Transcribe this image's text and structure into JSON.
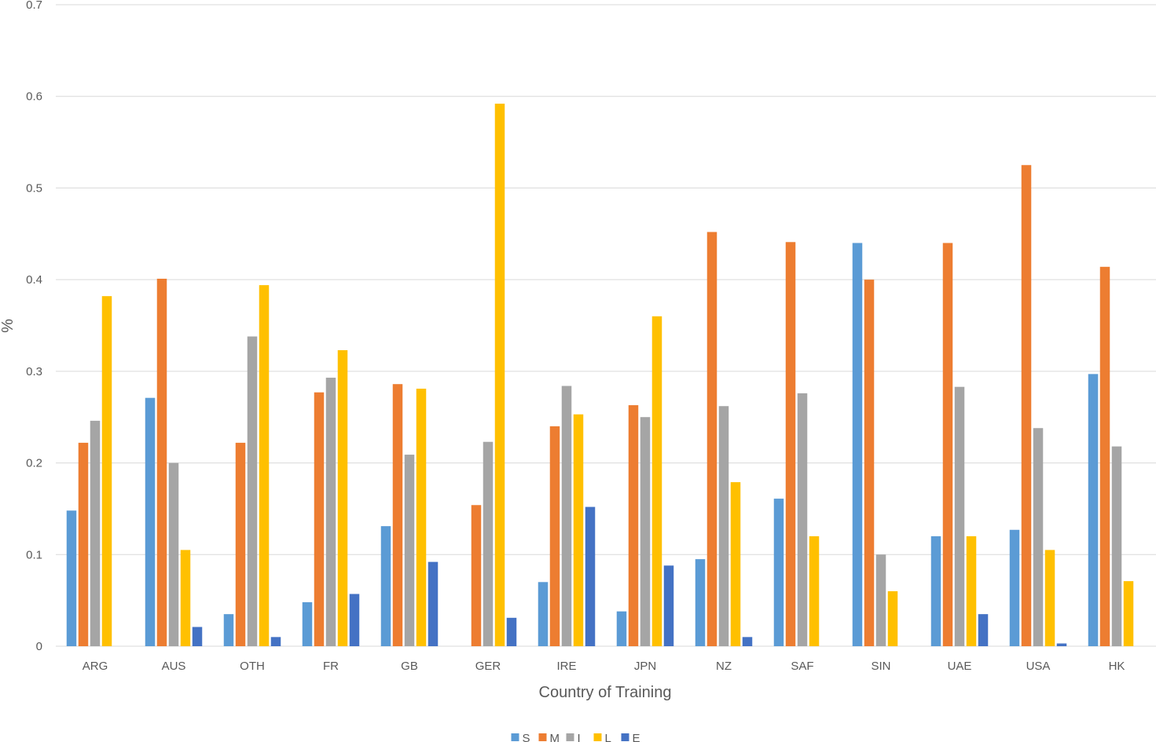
{
  "chart_data": {
    "type": "bar",
    "title": "",
    "xlabel": "Country of Training",
    "ylabel": "%",
    "ylim": [
      0,
      0.7
    ],
    "yticks": [
      0,
      0.1,
      0.2,
      0.3,
      0.4,
      0.5,
      0.6,
      0.7
    ],
    "grid": true,
    "legend_position": "bottom",
    "categories": [
      "ARG",
      "AUS",
      "OTH",
      "FR",
      "GB",
      "GER",
      "IRE",
      "JPN",
      "NZ",
      "SAF",
      "SIN",
      "UAE",
      "USA",
      "HK"
    ],
    "series": [
      {
        "name": "S",
        "color": "#5b9bd5",
        "values": [
          0.148,
          0.271,
          0.035,
          0.048,
          0.131,
          0,
          0.07,
          0.038,
          0.095,
          0.161,
          0.44,
          0.12,
          0.127,
          0.297
        ]
      },
      {
        "name": "M",
        "color": "#ed7d31",
        "values": [
          0.222,
          0.401,
          0.222,
          0.277,
          0.286,
          0.154,
          0.24,
          0.263,
          0.452,
          0.441,
          0.4,
          0.44,
          0.525,
          0.414
        ]
      },
      {
        "name": "I",
        "color": "#a5a5a5",
        "values": [
          0.246,
          0.2,
          0.338,
          0.293,
          0.209,
          0.223,
          0.284,
          0.25,
          0.262,
          0.276,
          0.1,
          0.283,
          0.238,
          0.218
        ]
      },
      {
        "name": "L",
        "color": "#ffc000",
        "values": [
          0.382,
          0.105,
          0.394,
          0.323,
          0.281,
          0.592,
          0.253,
          0.36,
          0.179,
          0.12,
          0.06,
          0.12,
          0.105,
          0.071
        ]
      },
      {
        "name": "E",
        "color": "#4472c4",
        "values": [
          0,
          0.021,
          0.01,
          0.057,
          0.092,
          0.031,
          0.152,
          0.088,
          0.01,
          0,
          0,
          0.035,
          0.003,
          0
        ]
      }
    ]
  }
}
